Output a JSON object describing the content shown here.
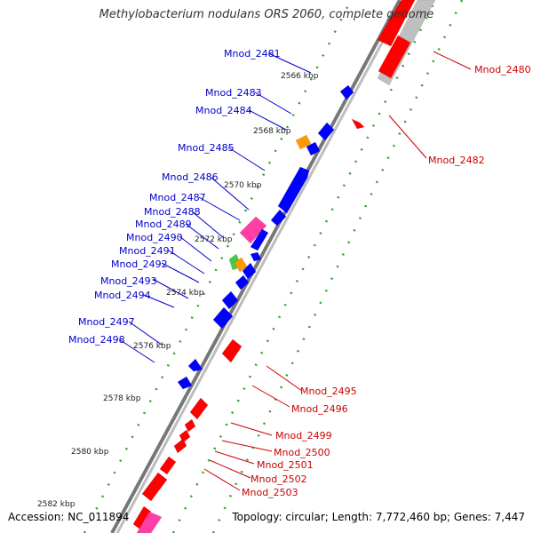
{
  "title": "Methylobacterium nodulans ORS 2060, complete genome",
  "accession": "Accession: NC_011894",
  "summary": "Topology: circular; Length: 7,772,460 bp; Genes: 7,447",
  "colors": {
    "forward_gene": "#ff0000",
    "reverse_gene": "#0000ff",
    "backbone": "#999999",
    "dots": "#33a02c",
    "left_label": "#0000cc",
    "right_label": "#cc0000",
    "pink": "#ff3fa6",
    "orange": "#ff9900",
    "green": "#44cc44",
    "gray": "#bfbfbf"
  },
  "kbp_ticks": [
    "2566 kbp",
    "2568 kbp",
    "2570 kbp",
    "2572 kbp",
    "2574 kbp",
    "2576 kbp",
    "2578 kbp",
    "2580 kbp",
    "2582 kbp"
  ],
  "left_labels": [
    "Mnod_2481",
    "Mnod_2483",
    "Mnod_2484",
    "Mnod_2485",
    "Mnod_2486",
    "Mnod_2487",
    "Mnod_2488",
    "Mnod_2489",
    "Mnod_2490",
    "Mnod_2491",
    "Mnod_2492",
    "Mnod_2493",
    "Mnod_2494",
    "Mnod_2497",
    "Mnod_2498"
  ],
  "right_labels": [
    "Mnod_2480",
    "Mnod_2482",
    "Mnod_2495",
    "Mnod_2496",
    "Mnod_2499",
    "Mnod_2500",
    "Mnod_2501",
    "Mnod_2502",
    "Mnod_2503"
  ]
}
